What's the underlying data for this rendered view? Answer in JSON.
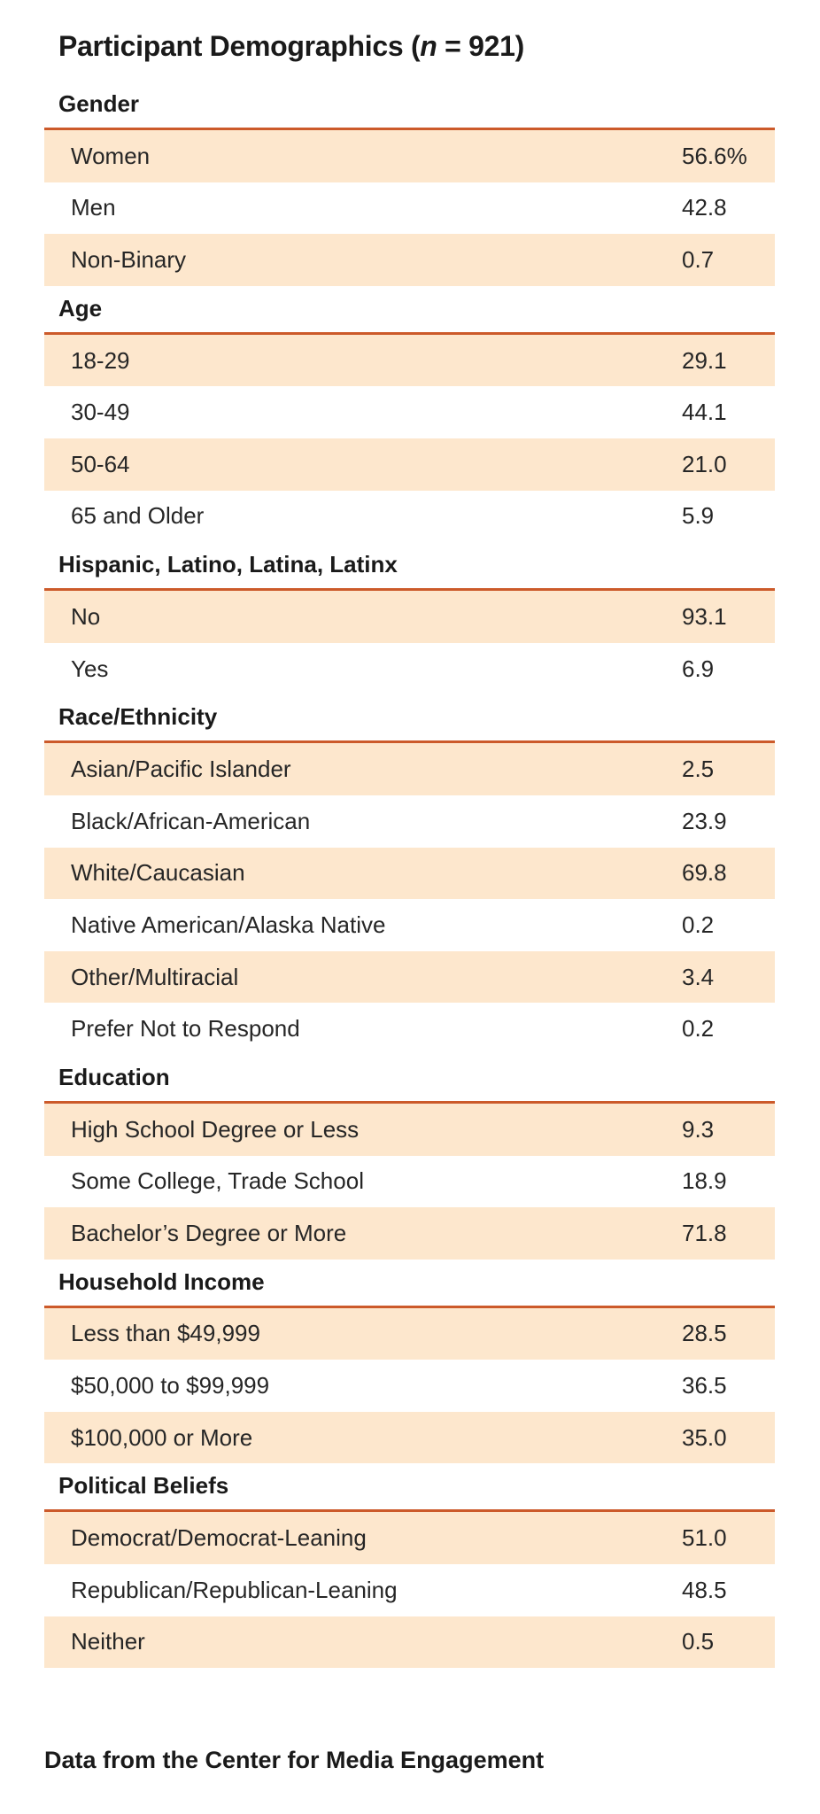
{
  "title": {
    "prefix": "Participant Demographics (",
    "italic": "n",
    "suffix": " = 921)"
  },
  "sections": [
    {
      "header": "Gender",
      "rows": [
        {
          "label": "Women",
          "value": "56.6%"
        },
        {
          "label": "Men",
          "value": "42.8"
        },
        {
          "label": "Non-Binary",
          "value": "0.7"
        }
      ]
    },
    {
      "header": "Age",
      "rows": [
        {
          "label": "18-29",
          "value": "29.1"
        },
        {
          "label": "30-49",
          "value": "44.1"
        },
        {
          "label": "50-64",
          "value": "21.0"
        },
        {
          "label": "65 and Older",
          "value": "5.9"
        }
      ]
    },
    {
      "header": "Hispanic, Latino, Latina, Latinx",
      "rows": [
        {
          "label": "No",
          "value": "93.1"
        },
        {
          "label": "Yes",
          "value": "6.9"
        }
      ]
    },
    {
      "header": "Race/Ethnicity",
      "rows": [
        {
          "label": "Asian/Pacific Islander",
          "value": "2.5"
        },
        {
          "label": "Black/African-American",
          "value": "23.9"
        },
        {
          "label": "White/Caucasian",
          "value": "69.8"
        },
        {
          "label": "Native American/Alaska Native",
          "value": "0.2"
        },
        {
          "label": "Other/Multiracial",
          "value": "3.4"
        },
        {
          "label": "Prefer Not to Respond",
          "value": "0.2"
        }
      ]
    },
    {
      "header": "Education",
      "rows": [
        {
          "label": "High School Degree or Less",
          "value": "9.3"
        },
        {
          "label": "Some College, Trade School",
          "value": "18.9"
        },
        {
          "label": "Bachelor’s Degree or More",
          "value": "71.8"
        }
      ]
    },
    {
      "header": "Household Income",
      "rows": [
        {
          "label": "Less than $49,999",
          "value": "28.5"
        },
        {
          "label": "$50,000 to $99,999",
          "value": "36.5"
        },
        {
          "label": "$100,000 or More",
          "value": "35.0"
        }
      ]
    },
    {
      "header": "Political Beliefs",
      "rows": [
        {
          "label": "Democrat/Democrat-Leaning",
          "value": "51.0"
        },
        {
          "label": "Republican/Republican-Leaning",
          "value": "48.5"
        },
        {
          "label": "Neither",
          "value": "0.5"
        }
      ]
    }
  ],
  "footer": "Data from the Center for Media Engagement",
  "colors": {
    "accent_rule": "#cc5a2a",
    "shaded_row": "#fde7cd"
  }
}
